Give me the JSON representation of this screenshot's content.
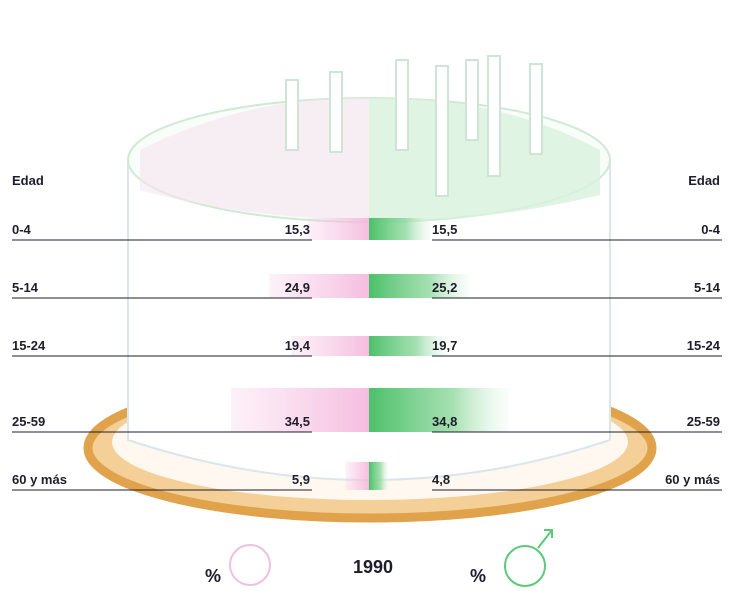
{
  "chart_data": {
    "type": "bar",
    "xlabel": "%",
    "year": "1990",
    "left_header": "Edad",
    "right_header": "Edad",
    "categories": [
      "0-4",
      "5-14",
      "15-24",
      "25-59",
      "60 y más"
    ],
    "series": [
      {
        "values": [
          15.3,
          24.9,
          19.4,
          34.5,
          5.9
        ],
        "labels": [
          "15,3",
          "24,9",
          "19,4",
          "34,5",
          "5,9"
        ],
        "color": "#f2a8d4",
        "symbol": "female"
      },
      {
        "values": [
          15.5,
          25.2,
          19.7,
          34.8,
          4.8
        ],
        "labels": [
          "15,5",
          "25,2",
          "19,7",
          "34,8",
          "4,8"
        ],
        "color": "#52c46e",
        "symbol": "male"
      }
    ],
    "ylim": [
      0,
      100
    ]
  },
  "colors": {
    "female": "#f2a8d4",
    "male": "#52c46e",
    "plate": "#e8a650",
    "text": "#1d1d2b"
  },
  "icons": {
    "female": "female-symbol-icon",
    "male": "male-symbol-icon"
  }
}
